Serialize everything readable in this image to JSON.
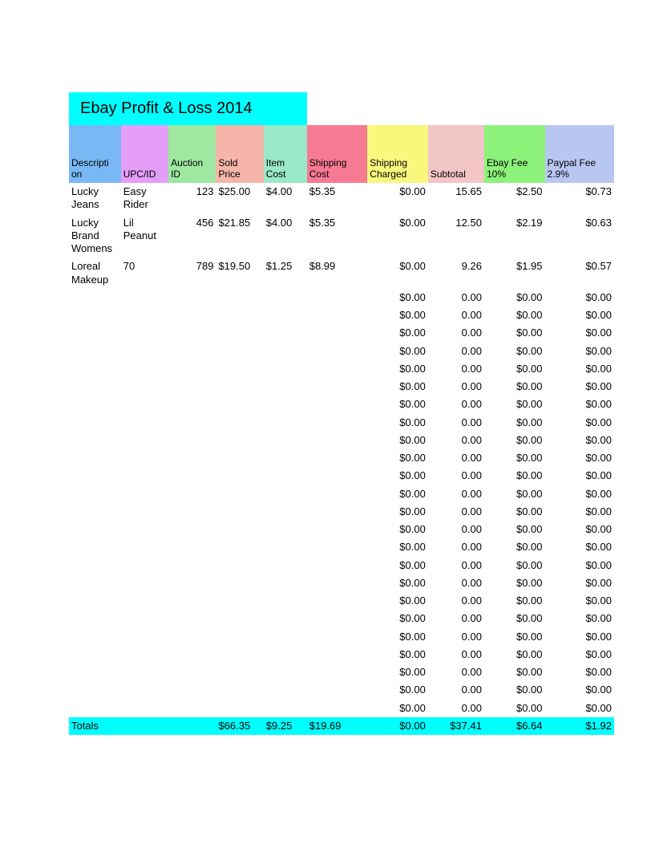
{
  "title": "Ebay Profit & Loss 2014",
  "title_bg": "#00ffff",
  "columns": [
    {
      "label": "Descripti on",
      "bg": "#7ab8f5"
    },
    {
      "label": "UPC/ID",
      "bg": "#e59ef7"
    },
    {
      "label": "Auction ID",
      "bg": "#9ee8a1"
    },
    {
      "label": "Sold Price",
      "bg": "#f5b5a8"
    },
    {
      "label": "Item Cost",
      "bg": "#9ae8c7"
    },
    {
      "label": "Shipping Cost",
      "bg": "#f77a93"
    },
    {
      "label": "Shipping Charged",
      "bg": "#faf77d"
    },
    {
      "label": "Subtotal",
      "bg": "#f2c6c6"
    },
    {
      "label": "Ebay Fee 10%",
      "bg": "#8cf27a"
    },
    {
      "label": "Paypal Fee 2.9%",
      "bg": "#b8c6f2"
    }
  ],
  "rows": [
    {
      "desc": "Lucky Jeans",
      "upc": "Easy Rider",
      "auction": "123",
      "sold": "$25.00",
      "cost": "$4.00",
      "shipcost": "$5.35",
      "shipchg": "$0.00",
      "subtotal": "15.65",
      "ebay": "$2.50",
      "paypal": "$0.73"
    },
    {
      "desc": "Lucky Brand Womens",
      "upc": "Lil Peanut",
      "auction": "456",
      "sold": "$21.85",
      "cost": "$4.00",
      "shipcost": "$5.35",
      "shipchg": "$0.00",
      "subtotal": "12.50",
      "ebay": "$2.19",
      "paypal": "$0.63"
    },
    {
      "desc": "Loreal Makeup",
      "upc": "70",
      "auction": "789",
      "sold": "$19.50",
      "cost": "$1.25",
      "shipcost": "$8.99",
      "shipchg": "$0.00",
      "subtotal": "9.26",
      "ebay": "$1.95",
      "paypal": "$0.57"
    },
    {
      "desc": "",
      "upc": "",
      "auction": "",
      "sold": "",
      "cost": "",
      "shipcost": "",
      "shipchg": "$0.00",
      "subtotal": "0.00",
      "ebay": "$0.00",
      "paypal": "$0.00"
    },
    {
      "desc": "",
      "upc": "",
      "auction": "",
      "sold": "",
      "cost": "",
      "shipcost": "",
      "shipchg": "$0.00",
      "subtotal": "0.00",
      "ebay": "$0.00",
      "paypal": "$0.00"
    },
    {
      "desc": "",
      "upc": "",
      "auction": "",
      "sold": "",
      "cost": "",
      "shipcost": "",
      "shipchg": "$0.00",
      "subtotal": "0.00",
      "ebay": "$0.00",
      "paypal": "$0.00"
    },
    {
      "desc": "",
      "upc": "",
      "auction": "",
      "sold": "",
      "cost": "",
      "shipcost": "",
      "shipchg": "$0.00",
      "subtotal": "0.00",
      "ebay": "$0.00",
      "paypal": "$0.00"
    },
    {
      "desc": "",
      "upc": "",
      "auction": "",
      "sold": "",
      "cost": "",
      "shipcost": "",
      "shipchg": "$0.00",
      "subtotal": "0.00",
      "ebay": "$0.00",
      "paypal": "$0.00"
    },
    {
      "desc": "",
      "upc": "",
      "auction": "",
      "sold": "",
      "cost": "",
      "shipcost": "",
      "shipchg": "$0.00",
      "subtotal": "0.00",
      "ebay": "$0.00",
      "paypal": "$0.00"
    },
    {
      "desc": "",
      "upc": "",
      "auction": "",
      "sold": "",
      "cost": "",
      "shipcost": "",
      "shipchg": "$0.00",
      "subtotal": "0.00",
      "ebay": "$0.00",
      "paypal": "$0.00"
    },
    {
      "desc": "",
      "upc": "",
      "auction": "",
      "sold": "",
      "cost": "",
      "shipcost": "",
      "shipchg": "$0.00",
      "subtotal": "0.00",
      "ebay": "$0.00",
      "paypal": "$0.00"
    },
    {
      "desc": "",
      "upc": "",
      "auction": "",
      "sold": "",
      "cost": "",
      "shipcost": "",
      "shipchg": "$0.00",
      "subtotal": "0.00",
      "ebay": "$0.00",
      "paypal": "$0.00"
    },
    {
      "desc": "",
      "upc": "",
      "auction": "",
      "sold": "",
      "cost": "",
      "shipcost": "",
      "shipchg": "$0.00",
      "subtotal": "0.00",
      "ebay": "$0.00",
      "paypal": "$0.00"
    },
    {
      "desc": "",
      "upc": "",
      "auction": "",
      "sold": "",
      "cost": "",
      "shipcost": "",
      "shipchg": "$0.00",
      "subtotal": "0.00",
      "ebay": "$0.00",
      "paypal": "$0.00"
    },
    {
      "desc": "",
      "upc": "",
      "auction": "",
      "sold": "",
      "cost": "",
      "shipcost": "",
      "shipchg": "$0.00",
      "subtotal": "0.00",
      "ebay": "$0.00",
      "paypal": "$0.00"
    },
    {
      "desc": "",
      "upc": "",
      "auction": "",
      "sold": "",
      "cost": "",
      "shipcost": "",
      "shipchg": "$0.00",
      "subtotal": "0.00",
      "ebay": "$0.00",
      "paypal": "$0.00"
    },
    {
      "desc": "",
      "upc": "",
      "auction": "",
      "sold": "",
      "cost": "",
      "shipcost": "",
      "shipchg": "$0.00",
      "subtotal": "0.00",
      "ebay": "$0.00",
      "paypal": "$0.00"
    },
    {
      "desc": "",
      "upc": "",
      "auction": "",
      "sold": "",
      "cost": "",
      "shipcost": "",
      "shipchg": "$0.00",
      "subtotal": "0.00",
      "ebay": "$0.00",
      "paypal": "$0.00"
    },
    {
      "desc": "",
      "upc": "",
      "auction": "",
      "sold": "",
      "cost": "",
      "shipcost": "",
      "shipchg": "$0.00",
      "subtotal": "0.00",
      "ebay": "$0.00",
      "paypal": "$0.00"
    },
    {
      "desc": "",
      "upc": "",
      "auction": "",
      "sold": "",
      "cost": "",
      "shipcost": "",
      "shipchg": "$0.00",
      "subtotal": "0.00",
      "ebay": "$0.00",
      "paypal": "$0.00"
    },
    {
      "desc": "",
      "upc": "",
      "auction": "",
      "sold": "",
      "cost": "",
      "shipcost": "",
      "shipchg": "$0.00",
      "subtotal": "0.00",
      "ebay": "$0.00",
      "paypal": "$0.00"
    },
    {
      "desc": "",
      "upc": "",
      "auction": "",
      "sold": "",
      "cost": "",
      "shipcost": "",
      "shipchg": "$0.00",
      "subtotal": "0.00",
      "ebay": "$0.00",
      "paypal": "$0.00"
    },
    {
      "desc": "",
      "upc": "",
      "auction": "",
      "sold": "",
      "cost": "",
      "shipcost": "",
      "shipchg": "$0.00",
      "subtotal": "0.00",
      "ebay": "$0.00",
      "paypal": "$0.00"
    },
    {
      "desc": "",
      "upc": "",
      "auction": "",
      "sold": "",
      "cost": "",
      "shipcost": "",
      "shipchg": "$0.00",
      "subtotal": "0.00",
      "ebay": "$0.00",
      "paypal": "$0.00"
    },
    {
      "desc": "",
      "upc": "",
      "auction": "",
      "sold": "",
      "cost": "",
      "shipcost": "",
      "shipchg": "$0.00",
      "subtotal": "0.00",
      "ebay": "$0.00",
      "paypal": "$0.00"
    },
    {
      "desc": "",
      "upc": "",
      "auction": "",
      "sold": "",
      "cost": "",
      "shipcost": "",
      "shipchg": "$0.00",
      "subtotal": "0.00",
      "ebay": "$0.00",
      "paypal": "$0.00"
    },
    {
      "desc": "",
      "upc": "",
      "auction": "",
      "sold": "",
      "cost": "",
      "shipcost": "",
      "shipchg": "$0.00",
      "subtotal": "0.00",
      "ebay": "$0.00",
      "paypal": "$0.00"
    }
  ],
  "totals": {
    "label": "Totals",
    "sold": "$66.35",
    "cost": "$9.25",
    "shipcost": "$19.69",
    "shipchg": "$0.00",
    "subtotal": "$37.41",
    "ebay": "$6.64",
    "paypal": "$1.92",
    "bg": "#00ffff"
  }
}
